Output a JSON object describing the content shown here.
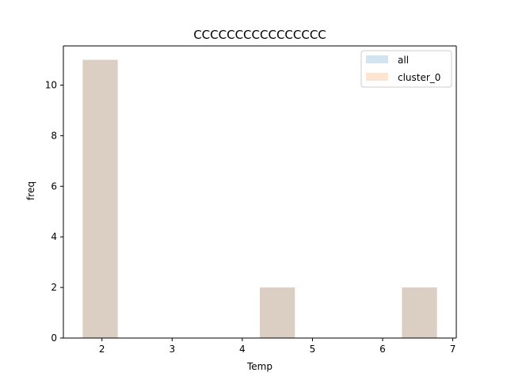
{
  "chart_data": {
    "type": "bar",
    "title": "CCCCCCCCCCCCCCCC",
    "xlabel": "Temp",
    "ylabel": "freq",
    "xlim": [
      1.45,
      7.05
    ],
    "ylim": [
      0,
      11.55
    ],
    "x_ticks": [
      2,
      3,
      4,
      5,
      6,
      7
    ],
    "y_ticks": [
      0,
      2,
      4,
      6,
      8,
      10
    ],
    "bar_width": 0.5,
    "grid": false,
    "legend_position": "top-right",
    "series": [
      {
        "name": "all",
        "color": "#1f77b4",
        "alpha": 0.2,
        "bars": [
          {
            "x_center": 1.975,
            "value": 11
          },
          {
            "x_center": 4.5,
            "value": 2
          },
          {
            "x_center": 6.525,
            "value": 2
          }
        ]
      },
      {
        "name": "cluster_0",
        "color": "#ff7f0e",
        "alpha": 0.2,
        "bars": [
          {
            "x_center": 1.975,
            "value": 11
          },
          {
            "x_center": 4.5,
            "value": 2
          },
          {
            "x_center": 6.525,
            "value": 2
          }
        ]
      }
    ]
  }
}
